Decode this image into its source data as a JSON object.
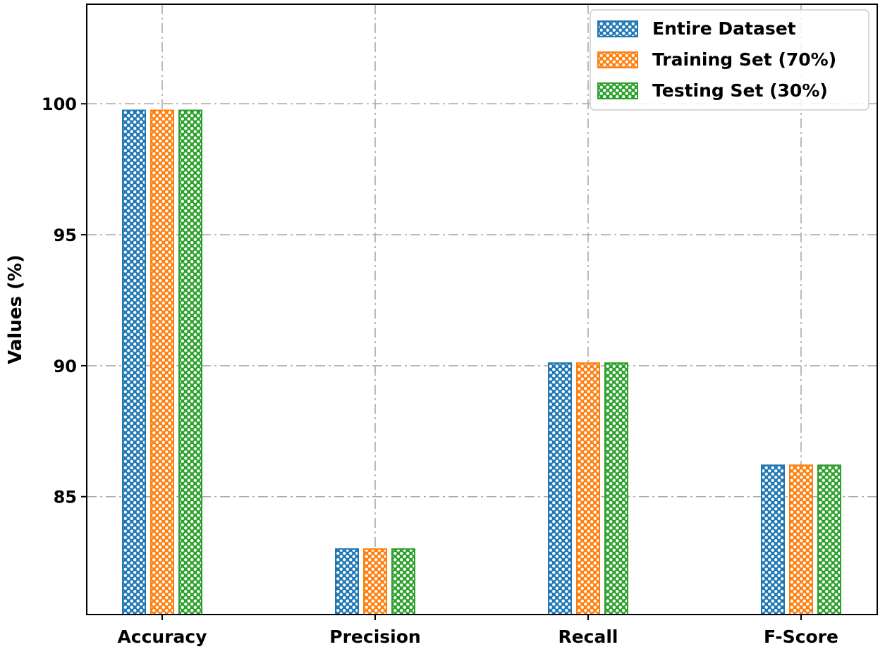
{
  "chart_data": {
    "type": "bar",
    "categories": [
      "Accuracy",
      "Precision",
      "Recall",
      "F-Score"
    ],
    "series": [
      {
        "name": "Entire Dataset",
        "values": [
          99.75,
          83.0,
          90.1,
          86.2
        ]
      },
      {
        "name": "Training Set (70%)",
        "values": [
          99.75,
          83.0,
          90.1,
          86.2
        ]
      },
      {
        "name": "Testing Set (30%)",
        "values": [
          99.75,
          83.0,
          90.1,
          86.2
        ]
      }
    ],
    "title": "",
    "xlabel": "",
    "ylabel": "Values (%)",
    "ylim": [
      80.5,
      103.8
    ],
    "yticks": [
      85,
      90,
      95,
      100
    ],
    "grid": true,
    "grid_style": "dash-dot",
    "legend_position": "top-right",
    "hatch": "dots",
    "colors": [
      "#1f77b4",
      "#ff7f0e",
      "#2ca02c"
    ]
  }
}
